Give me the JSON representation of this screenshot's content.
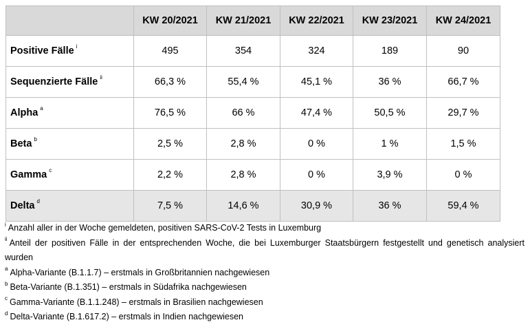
{
  "table": {
    "columns": [
      "KW 20/2021",
      "KW 21/2021",
      "KW 22/2021",
      "KW 23/2021",
      "KW 24/2021"
    ],
    "rows": [
      {
        "label": "Positive Fälle",
        "sup": "i",
        "values": [
          "495",
          "354",
          "324",
          "189",
          "90"
        ]
      },
      {
        "label": "Sequenzierte Fälle",
        "sup": "ii",
        "values": [
          "66,3 %",
          "55,4 %",
          "45,1 %",
          "36 %",
          "66,7 %"
        ]
      },
      {
        "label": "Alpha",
        "sup": "a",
        "values": [
          "76,5 %",
          "66 %",
          "47,4 %",
          "50,5 %",
          "29,7 %"
        ]
      },
      {
        "label": "Beta",
        "sup": "b",
        "values": [
          "2,5 %",
          "2,8 %",
          "0 %",
          "1 %",
          "1,5 %"
        ]
      },
      {
        "label": "Gamma",
        "sup": "c",
        "values": [
          "2,2 %",
          "2,8 %",
          "0 %",
          "3,9 %",
          "0 %"
        ]
      },
      {
        "label": "Delta",
        "sup": "d",
        "values": [
          "7,5 %",
          "14,6 %",
          "30,9 %",
          "36 %",
          "59,4 %"
        ]
      }
    ],
    "colors": {
      "header_bg": "#d9d9d9",
      "highlight_row_bg": "#e6e6e6",
      "border": "#bfbfbf"
    }
  },
  "footnotes": [
    {
      "mark": "i",
      "text": "Anzahl aller in der Woche gemeldeten, positiven SARS-CoV-2 Tests in Luxemburg"
    },
    {
      "mark": "ii",
      "text": "Anteil der positiven Fälle in der entsprechenden Woche, die bei Luxemburger Staatsbürgern festgestellt und genetisch analysiert wurden"
    },
    {
      "mark": "a",
      "text": "Alpha-Variante (B.1.1.7) – erstmals in Großbritannien nachgewiesen"
    },
    {
      "mark": "b",
      "text": "Beta-Variante (B.1.351) – erstmals in Südafrika nachgewiesen"
    },
    {
      "mark": "c",
      "text": "Gamma-Variante (B.1.1.248) – erstmals in Brasilien nachgewiesen"
    },
    {
      "mark": "d",
      "text": "Delta-Variante (B.1.617.2) – erstmals in Indien nachgewiesen"
    }
  ]
}
